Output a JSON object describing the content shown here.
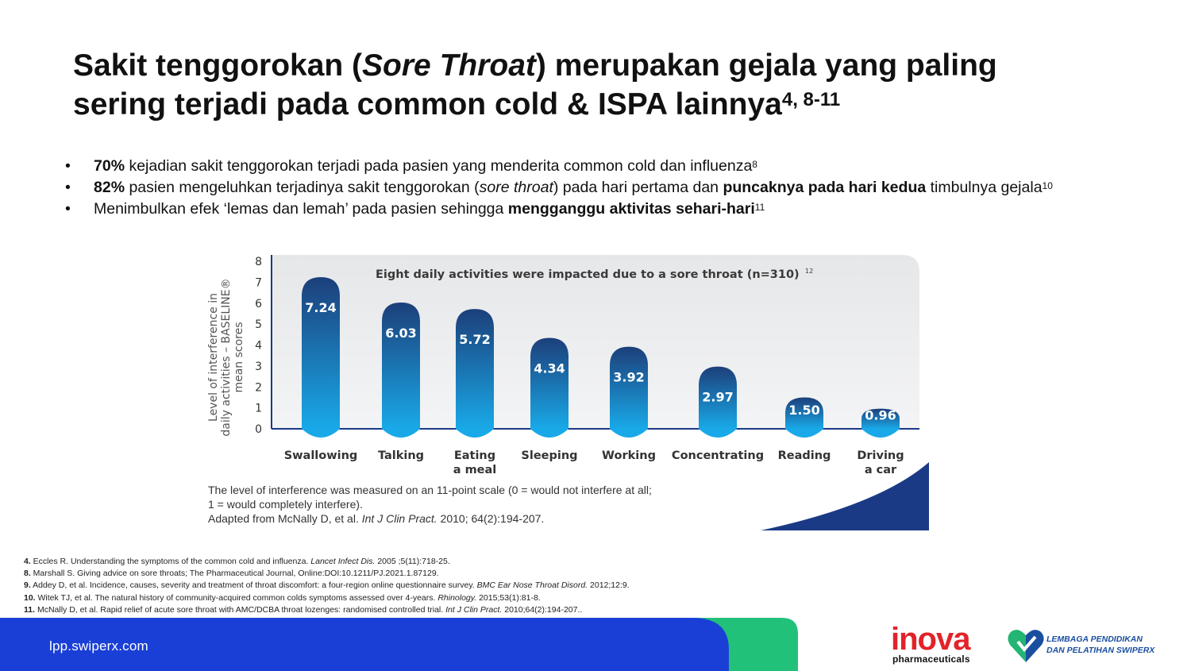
{
  "title": {
    "line1_pre": "Sakit tenggorokan (",
    "line1_italic": "Sore Throat",
    "line1_post": ") merupakan gejala yang paling",
    "line2": "sering terjadi pada common cold & ISPA lainnya",
    "line2_sup": "4, 8-11"
  },
  "bullets": [
    {
      "bold1": "70%",
      "text1": " kejadian sakit tenggorokan terjadi pada pasien yang menderita common cold dan influenza",
      "sup": "8"
    },
    {
      "bold1": "82%",
      "text1": " pasien mengeluhkan terjadinya sakit tenggorokan (",
      "italic": "sore throat",
      "text2": ") pada hari pertama dan ",
      "bold2": "puncaknya pada hari kedua",
      "text3": " timbulnya gejala",
      "sup": "10"
    },
    {
      "text1": "Menimbulkan efek ‘lemas dan lemah’ pada pasien sehingga ",
      "bold2": "mengganggu aktivitas sehari-hari",
      "sup": "11"
    }
  ],
  "chart_data": {
    "type": "bar",
    "title": "Eight daily activities were impacted due to a sore throat (n=310)",
    "title_sup": "12",
    "ylabel_line1": "Level of interference in",
    "ylabel_line2": "daily activities – BASELINE®",
    "ylabel_line3": "mean scores",
    "ylim": [
      0,
      8
    ],
    "yticks": [
      "0",
      "1",
      "2",
      "3",
      "4",
      "5",
      "6",
      "7",
      "8"
    ],
    "categories": [
      [
        "Swallowing"
      ],
      [
        "Talking"
      ],
      [
        "Eating",
        "a meal"
      ],
      [
        "Sleeping"
      ],
      [
        "Working"
      ],
      [
        "Concentrating"
      ],
      [
        "Reading"
      ],
      [
        "Driving",
        "a car"
      ]
    ],
    "values": [
      7.24,
      6.03,
      5.72,
      4.34,
      3.92,
      2.97,
      1.5,
      0.96
    ],
    "value_labels": [
      "7.24",
      "6.03",
      "5.72",
      "4.34",
      "3.92",
      "2.97",
      "1.50",
      "0.96"
    ],
    "bar_color_top": "#1c3f7a",
    "bar_color_bottom": "#19a9e8",
    "grid": false
  },
  "chart_note": {
    "line1": "The level of interference was measured on an 11-point scale (0 = would not interfere at all;",
    "line2": "1 = would completely interfere).",
    "line3_pre": "Adapted from McNally D, et al. ",
    "line3_italic": "Int J Clin Pract.",
    "line3_post": " 2010; 64(2):194-207."
  },
  "references": [
    {
      "num": "4.",
      "pre": " Eccles R. Understanding the symptoms of the common cold and influenza. ",
      "italic": "Lancet Infect Dis.",
      "post": " 2005 ;5(11):718-25."
    },
    {
      "num": "8.",
      "pre": " Marshall S. Giving advice on sore throats; The Pharmaceutical Journal, Online:DOI:10.1211/PJ.2021.1.87129.",
      "italic": "",
      "post": ""
    },
    {
      "num": "9.",
      "pre": " Addey D, et al. Incidence, causes, severity and treatment of throat discomfort: a four-region online questionnaire survey. ",
      "italic": "BMC Ear Nose Throat Disord.",
      "post": " 2012;12:9."
    },
    {
      "num": "10.",
      "pre": " Witek TJ, et al. The natural history of community-acquired common colds symptoms assessed over 4-years. ",
      "italic": "Rhinology.",
      "post": " 2015;53(1):81-8."
    },
    {
      "num": "11.",
      "pre": " McNally D, et al. Rapid relief of acute sore throat with AMC/DCBA throat lozenges: randomised controlled trial. ",
      "italic": "Int J Clin Pract.",
      "post": " 2010;64(2):194-207.."
    }
  ],
  "footer": {
    "url": "lpp.swiperx.com",
    "colors": {
      "blue": "#1a3fd6",
      "green": "#22c17a",
      "navy": "#0f2a8a"
    }
  },
  "logos": {
    "inova_word": "inova",
    "inova_sub": "pharmaceuticals",
    "lpp_line1": "LEMBAGA PENDIDIKAN",
    "lpp_line2": "DAN PELATIHAN SWIPERX"
  }
}
